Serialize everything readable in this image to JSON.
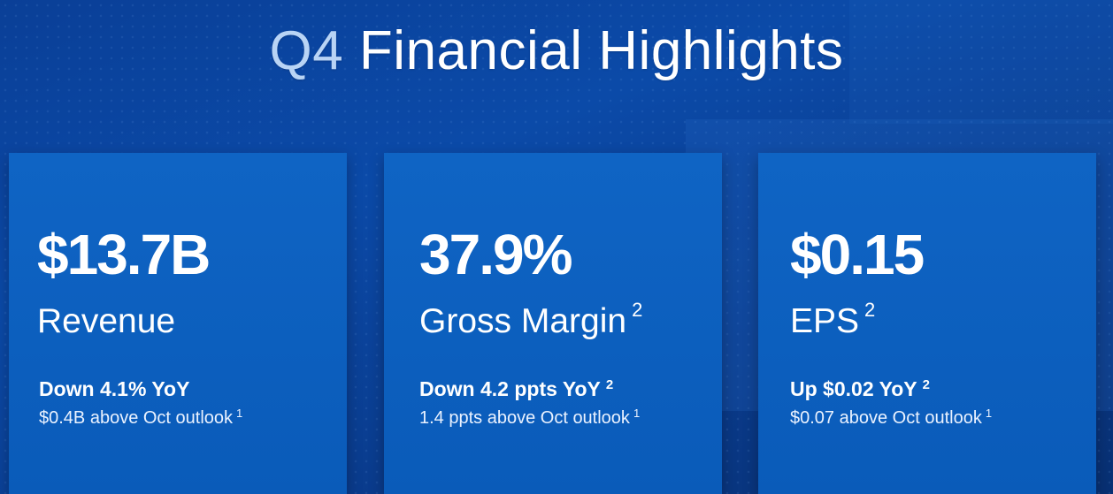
{
  "slide": {
    "title_prefix": "Q4",
    "title_rest": "Financial Highlights"
  },
  "cards": [
    {
      "value": "$13.7B",
      "label": "Revenue",
      "label_sup": "",
      "change": "Down 4.1% YoY",
      "change_sup": "",
      "outlook": "$0.4B above Oct outlook",
      "outlook_sup": "1"
    },
    {
      "value": "37.9%",
      "label": "Gross Margin",
      "label_sup": "2",
      "change": "Down 4.2 ppts YoY",
      "change_sup": "2",
      "outlook": "1.4 ppts above Oct outlook",
      "outlook_sup": "1"
    },
    {
      "value": "$0.15",
      "label": "EPS",
      "label_sup": "2",
      "change": "Up $0.02 YoY",
      "change_sup": "2",
      "outlook": "$0.07 above Oct outlook",
      "outlook_sup": "1"
    }
  ]
}
